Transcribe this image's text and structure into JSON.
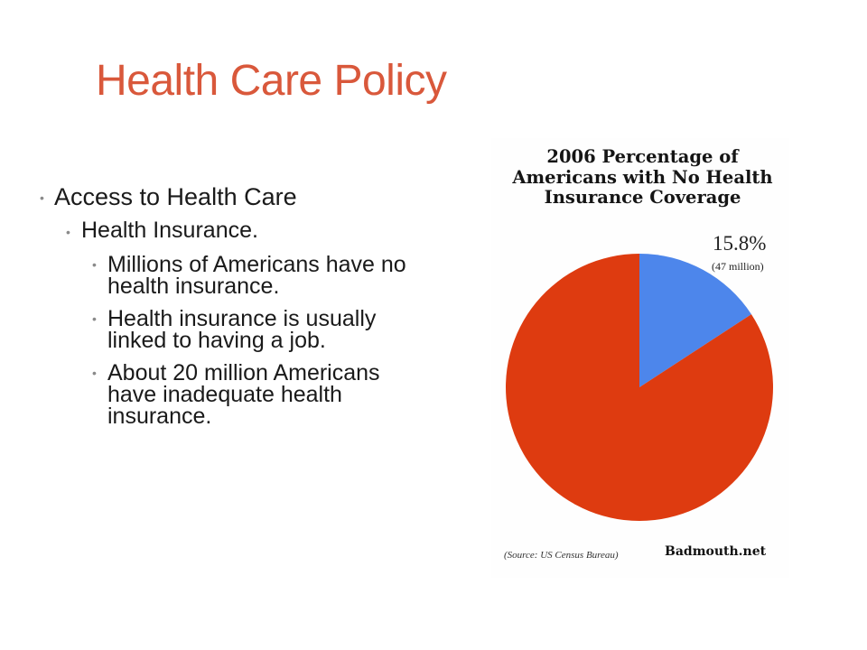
{
  "slide": {
    "title": "Health Care Policy",
    "bullets": [
      {
        "level": 1,
        "text": "Access to Health Care"
      },
      {
        "level": 2,
        "text": "Health Insurance."
      },
      {
        "level": 3,
        "text": "Millions of Americans have no health insurance."
      },
      {
        "level": 3,
        "text": "Health insurance is usually linked to having a job."
      },
      {
        "level": 3,
        "text": "About 20 million Americans have inadequate health insurance."
      }
    ]
  },
  "chart_data": {
    "type": "pie",
    "title_lines": [
      "2006 Percentage of",
      "Americans with No Health",
      "Insurance Coverage"
    ],
    "slices": [
      {
        "label": "15.8%",
        "sublabel": "(47 million)",
        "value": 15.8,
        "color": "#4d86eb"
      },
      {
        "value": 84.2,
        "color": "#de3b10"
      }
    ],
    "source": "(Source: US Census Bureau)",
    "credit": "Badmouth.net"
  }
}
